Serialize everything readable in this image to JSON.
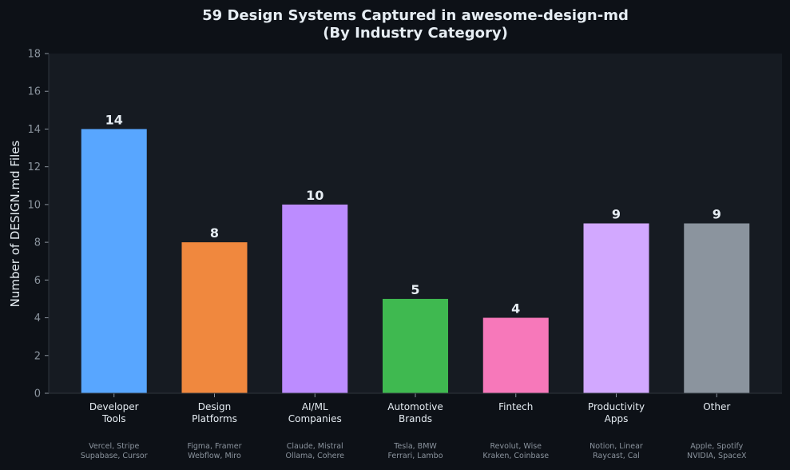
{
  "chart_data": {
    "type": "bar",
    "title": "59 Design Systems Captured in awesome-design-md",
    "subtitle": "(By Industry Category)",
    "xlabel": "",
    "ylabel": "Number of DESIGN.md Files",
    "ylim": [
      0,
      18
    ],
    "yticks": [
      0,
      2,
      4,
      6,
      8,
      10,
      12,
      14,
      16,
      18
    ],
    "grid": false,
    "categories": [
      [
        "Developer",
        "Tools"
      ],
      [
        "Design",
        "Platforms"
      ],
      [
        "AI/ML",
        "Companies"
      ],
      [
        "Automotive",
        "Brands"
      ],
      [
        "Fintech"
      ],
      [
        "Productivity",
        "Apps"
      ],
      [
        "Other"
      ]
    ],
    "examples": [
      [
        "Vercel, Stripe",
        "Supabase, Cursor"
      ],
      [
        "Figma, Framer",
        "Webflow, Miro"
      ],
      [
        "Claude, Mistral",
        "Ollama, Cohere"
      ],
      [
        "Tesla, BMW",
        "Ferrari, Lambo"
      ],
      [
        "Revolut, Wise",
        "Kraken, Coinbase"
      ],
      [
        "Notion, Linear",
        "Raycast, Cal"
      ],
      [
        "Apple, Spotify",
        "NVIDIA, SpaceX"
      ]
    ],
    "values": [
      14,
      8,
      10,
      5,
      4,
      9,
      9
    ],
    "colors": [
      "#58a6ff",
      "#f0883e",
      "#bc8cff",
      "#3fb950",
      "#f778ba",
      "#d2a8ff",
      "#8b949e"
    ]
  },
  "colors": {
    "background": "#0d1117",
    "plot_background": "#161b22",
    "text": "#e6edf3",
    "tick_text": "#8b949e"
  }
}
